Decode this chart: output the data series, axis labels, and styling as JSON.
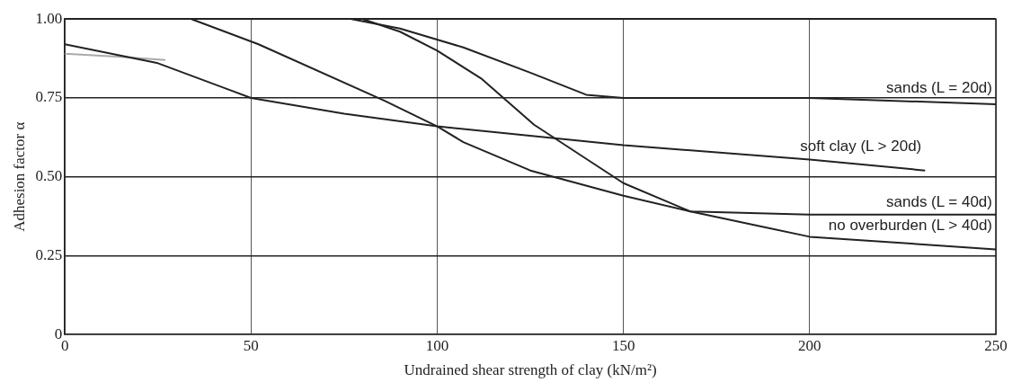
{
  "chart_data": {
    "type": "line",
    "xlabel": "Undrained shear strength of clay (kN/m²)",
    "ylabel": "Adhesion factor α",
    "xlim": [
      0,
      250
    ],
    "xticks": [
      0,
      50,
      100,
      150,
      200,
      250
    ],
    "ylim": [
      0,
      1
    ],
    "yticks": [
      {
        "value": 0,
        "label": "0"
      },
      {
        "value": 0.25,
        "label": "0.25"
      },
      {
        "value": 0.5,
        "label": "0.50"
      },
      {
        "value": 0.75,
        "label": "0.75"
      },
      {
        "value": 1,
        "label": "1.00"
      }
    ],
    "grid": true,
    "legend": false,
    "marker": "none",
    "line_style": "solid",
    "series": [
      {
        "name": "sands (L = 20d)",
        "color": "#222222",
        "x": [
          77,
          90,
          107,
          125,
          140,
          150,
          200,
          250
        ],
        "values": [
          1.0,
          0.97,
          0.91,
          0.83,
          0.76,
          0.75,
          0.75,
          0.73
        ]
      },
      {
        "name": "soft clay (L > 20d)",
        "color": "#222222",
        "x": [
          0,
          25,
          50,
          75,
          100,
          150,
          200,
          231
        ],
        "values": [
          0.92,
          0.86,
          0.75,
          0.7,
          0.66,
          0.6,
          0.555,
          0.52
        ]
      },
      {
        "name": "sands (L = 40d)",
        "color": "#222222",
        "x": [
          34,
          52,
          86,
          100,
          107,
          125,
          150,
          168,
          200,
          250
        ],
        "values": [
          1.0,
          0.92,
          0.74,
          0.66,
          0.61,
          0.52,
          0.44,
          0.39,
          0.38,
          0.38
        ]
      },
      {
        "name": "no overburden (L > 40d)",
        "color": "#222222",
        "x": [
          80,
          90,
          100,
          112,
          126,
          150,
          168,
          200,
          250
        ],
        "values": [
          1.0,
          0.96,
          0.9,
          0.81,
          0.665,
          0.48,
          0.39,
          0.31,
          0.27
        ]
      },
      {
        "color": "#aaaaaa",
        "x": [
          0,
          15,
          27
        ],
        "values": [
          0.89,
          0.88,
          0.87
        ]
      }
    ]
  }
}
